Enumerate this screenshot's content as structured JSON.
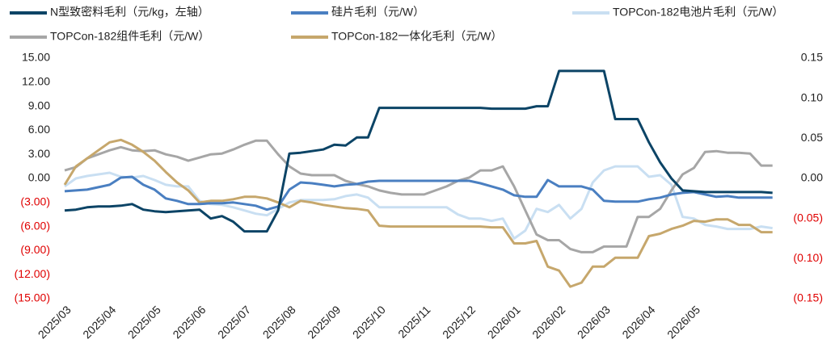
{
  "chart_data": {
    "type": "line",
    "categories": [
      "2025/03",
      null,
      null,
      null,
      "2025/04",
      null,
      null,
      null,
      "2025/05",
      null,
      null,
      null,
      "2025/06",
      null,
      null,
      null,
      "2025/07",
      null,
      null,
      null,
      "2025/08",
      null,
      null,
      null,
      "2025/09",
      null,
      null,
      null,
      "2025/10",
      null,
      null,
      null,
      "2025/11",
      null,
      null,
      null,
      "2025/12",
      null,
      null,
      null,
      "2026/01",
      null,
      null,
      null,
      "2026/02",
      null,
      null,
      null,
      "2026/03",
      null,
      null,
      null,
      "2026/04",
      null,
      null,
      null,
      "2026/05",
      null,
      null,
      null,
      null,
      null,
      null,
      null
    ],
    "series": [
      {
        "name": "N型致密料毛利（元/kg，左轴）",
        "color": "#0c4466",
        "axis": "y",
        "values": [
          -4.0,
          -3.9,
          -3.6,
          -3.5,
          -3.5,
          -3.4,
          -3.2,
          -3.9,
          -4.1,
          -4.2,
          -4.1,
          -4.0,
          -3.9,
          -5.0,
          -4.7,
          -5.4,
          -6.6,
          -6.6,
          -6.6,
          -4.0,
          3.1,
          3.2,
          3.4,
          3.6,
          4.2,
          4.1,
          5.1,
          5.1,
          8.8,
          8.8,
          8.8,
          8.8,
          8.8,
          8.8,
          8.8,
          8.8,
          8.8,
          8.8,
          8.7,
          8.7,
          8.7,
          8.7,
          9.0,
          9.0,
          13.4,
          13.4,
          13.4,
          13.4,
          13.4,
          7.4,
          7.4,
          7.4,
          4.5,
          2.0,
          0.0,
          -1.5,
          -1.6,
          -1.7,
          -1.7,
          -1.7,
          -1.7,
          -1.7,
          -1.7,
          -1.8
        ]
      },
      {
        "name": "硅片毛利（元/W）",
        "color": "#4a7fc1",
        "axis": "y2",
        "values": [
          -0.016,
          -0.015,
          -0.014,
          -0.011,
          -0.008,
          0.001,
          0.002,
          -0.008,
          -0.014,
          -0.025,
          -0.028,
          -0.032,
          -0.032,
          -0.031,
          -0.031,
          -0.03,
          -0.032,
          -0.034,
          -0.039,
          -0.035,
          -0.014,
          -0.005,
          -0.006,
          -0.008,
          -0.01,
          -0.008,
          -0.007,
          -0.004,
          -0.003,
          -0.003,
          -0.003,
          -0.003,
          -0.003,
          -0.003,
          -0.003,
          -0.003,
          -0.003,
          -0.006,
          -0.01,
          -0.014,
          -0.021,
          -0.023,
          -0.023,
          -0.002,
          -0.01,
          -0.01,
          -0.01,
          -0.014,
          -0.028,
          -0.029,
          -0.029,
          -0.029,
          -0.026,
          -0.024,
          -0.02,
          -0.018,
          -0.017,
          -0.02,
          -0.023,
          -0.022,
          -0.024,
          -0.024,
          -0.024,
          -0.024
        ]
      },
      {
        "name": "TOPCon-182电池片毛利（元/W）",
        "color": "#c9dff2",
        "axis": "y2",
        "values": [
          -0.01,
          0,
          0.003,
          0.005,
          0.007,
          0.002,
          0.001,
          0.003,
          -0.002,
          -0.008,
          -0.01,
          -0.01,
          -0.028,
          -0.032,
          -0.033,
          -0.036,
          -0.04,
          -0.044,
          -0.046,
          -0.038,
          -0.03,
          -0.027,
          -0.027,
          -0.027,
          -0.026,
          -0.022,
          -0.02,
          -0.024,
          -0.036,
          -0.036,
          -0.036,
          -0.036,
          -0.036,
          -0.036,
          -0.036,
          -0.045,
          -0.05,
          -0.05,
          -0.053,
          -0.05,
          -0.075,
          -0.065,
          -0.038,
          -0.042,
          -0.033,
          -0.05,
          -0.038,
          -0.005,
          0.01,
          0.015,
          0.015,
          0.015,
          0.002,
          0.004,
          -0.008,
          -0.048,
          -0.05,
          -0.058,
          -0.06,
          -0.063,
          -0.063,
          -0.063,
          -0.06,
          -0.062
        ]
      },
      {
        "name": "TOPCon-182组件毛利（元/W）",
        "color": "#a6a6a6",
        "axis": "y2",
        "values": [
          0.01,
          0.014,
          0.025,
          0.03,
          0.035,
          0.039,
          0.035,
          0.034,
          0.035,
          0.03,
          0.027,
          0.022,
          0.026,
          0.03,
          0.031,
          0.036,
          0.042,
          0.047,
          0.047,
          0.03,
          0.015,
          0.006,
          0.004,
          0.004,
          0.004,
          -0.003,
          -0.007,
          -0.01,
          -0.015,
          -0.018,
          -0.02,
          -0.02,
          -0.02,
          -0.015,
          -0.01,
          -0.003,
          0.001,
          0.01,
          0.01,
          0.015,
          -0.01,
          -0.04,
          -0.07,
          -0.077,
          -0.077,
          -0.088,
          -0.092,
          -0.092,
          -0.085,
          -0.085,
          -0.085,
          -0.048,
          -0.048,
          -0.038,
          -0.015,
          0.005,
          0.013,
          0.033,
          0.034,
          0.032,
          0.032,
          0.031,
          0.016,
          0.016
        ]
      },
      {
        "name": "TOPCon-182一体化毛利（元/W）",
        "color": "#c6a76c",
        "axis": "y2",
        "values": [
          -0.008,
          0.015,
          0.025,
          0.035,
          0.045,
          0.048,
          0.042,
          0.033,
          0.022,
          0.008,
          -0.005,
          -0.015,
          -0.03,
          -0.028,
          -0.028,
          -0.026,
          -0.023,
          -0.023,
          -0.025,
          -0.03,
          -0.036,
          -0.028,
          -0.03,
          -0.033,
          -0.035,
          -0.037,
          -0.038,
          -0.04,
          -0.059,
          -0.06,
          -0.06,
          -0.06,
          -0.06,
          -0.06,
          -0.06,
          -0.06,
          -0.06,
          -0.06,
          -0.061,
          -0.061,
          -0.081,
          -0.081,
          -0.078,
          -0.11,
          -0.115,
          -0.135,
          -0.13,
          -0.11,
          -0.11,
          -0.099,
          -0.099,
          -0.099,
          -0.072,
          -0.069,
          -0.063,
          -0.059,
          -0.053,
          -0.054,
          -0.051,
          -0.051,
          -0.058,
          -0.058,
          -0.067,
          -0.067
        ]
      }
    ],
    "ylim": [
      -15,
      15
    ],
    "yticks": [
      {
        "value": 15,
        "label": "15.00"
      },
      {
        "value": 12,
        "label": "12.00"
      },
      {
        "value": 9,
        "label": "9.00"
      },
      {
        "value": 6,
        "label": "6.00"
      },
      {
        "value": 3,
        "label": "3.00"
      },
      {
        "value": 0,
        "label": "0.00"
      },
      {
        "value": -3,
        "label": "(3.00)"
      },
      {
        "value": -6,
        "label": "(6.00)"
      },
      {
        "value": -9,
        "label": "(9.00)"
      },
      {
        "value": -12,
        "label": "(12.00)"
      },
      {
        "value": -15,
        "label": "(15.00)"
      }
    ],
    "y2lim": [
      -0.15,
      0.15
    ],
    "y2ticks": [
      {
        "value": 0.15,
        "label": "0.15"
      },
      {
        "value": 0.1,
        "label": "0.10"
      },
      {
        "value": 0.05,
        "label": "0.05"
      },
      {
        "value": 0,
        "label": "0.00"
      },
      {
        "value": -0.05,
        "label": "(0.05)"
      },
      {
        "value": -0.1,
        "label": "(0.10)"
      },
      {
        "value": -0.15,
        "label": "(0.15)"
      }
    ],
    "negative_label_color": "#e00000",
    "grid": false,
    "legend": "top"
  }
}
